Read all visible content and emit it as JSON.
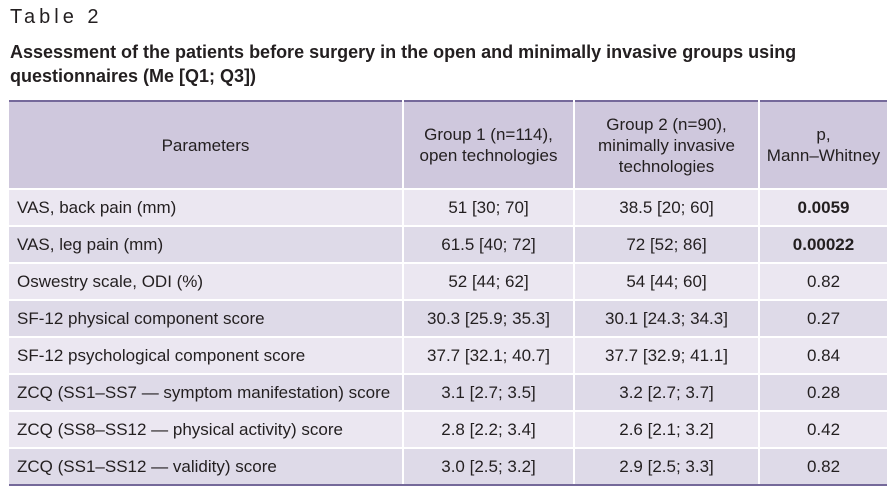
{
  "table_label": "Table 2",
  "caption": "Assessment of the patients before surgery in the open and minimally invasive groups using questionnaires (Me [Q1; Q3])",
  "headers": {
    "parameters": "Parameters",
    "group1_line1": "Group 1 (n=114),",
    "group1_line2": "open technologies",
    "group2_line1": "Group 2 (n=90),",
    "group2_line2": "minimally invasive",
    "group2_line3": "technologies",
    "p_line1": "p,",
    "p_line2": "Mann–Whitney"
  },
  "rows": [
    {
      "param": "VAS, back pain (mm)",
      "g1": "51 [30; 70]",
      "g2": "38.5 [20; 60]",
      "p": "0.0059",
      "bold_p": true
    },
    {
      "param": "VAS, leg pain (mm)",
      "g1": "61.5 [40; 72]",
      "g2": "72 [52; 86]",
      "p": "0.00022",
      "bold_p": true
    },
    {
      "param": "Oswestry scale, ODI (%)",
      "g1": "52 [44; 62]",
      "g2": "54 [44; 60]",
      "p": "0.82",
      "bold_p": false
    },
    {
      "param": "SF-12 physical component score",
      "g1": "30.3 [25.9; 35.3]",
      "g2": "30.1 [24.3; 34.3]",
      "p": "0.27",
      "bold_p": false
    },
    {
      "param": "SF-12 psychological component score",
      "g1": "37.7 [32.1; 40.7]",
      "g2": "37.7 [32.9; 41.1]",
      "p": "0.84",
      "bold_p": false
    },
    {
      "param": "ZCQ (SS1–SS7 — symptom manifestation) score",
      "g1": "3.1 [2.7; 3.5]",
      "g2": "3.2 [2.7; 3.7]",
      "p": "0.28",
      "bold_p": false
    },
    {
      "param": "ZCQ (SS8–SS12 — physical activity) score",
      "g1": "2.8 [2.2; 3.4]",
      "g2": "2.6 [2.1; 3.2]",
      "p": "0.42",
      "bold_p": false
    },
    {
      "param": "ZCQ (SS1–SS12 — validity) score",
      "g1": "3.0 [2.5; 3.2]",
      "g2": "2.9 [2.5; 3.3]",
      "p": "0.82",
      "bold_p": false
    }
  ]
}
